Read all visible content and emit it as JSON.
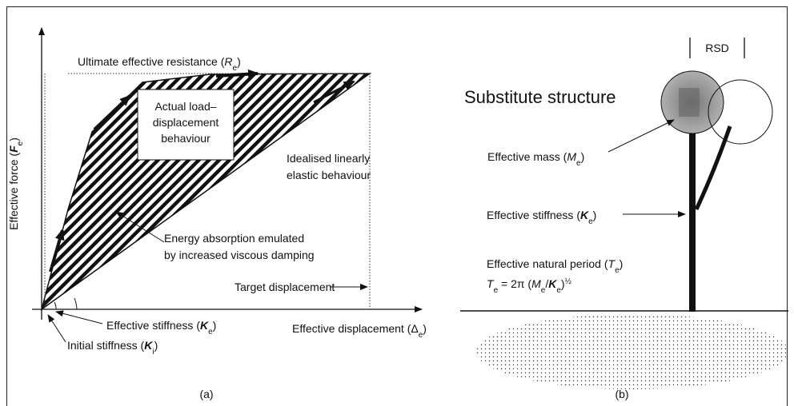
{
  "panel_a": {
    "y_axis_label": [
      {
        "t": "Effective force ("
      },
      {
        "t": "F",
        "bi": true
      },
      {
        "t": "e",
        "sub": true
      },
      {
        "t": ")"
      }
    ],
    "ultimate_resistance": [
      {
        "t": "Ultimate effective resistance ("
      },
      {
        "t": "R",
        "i": true
      },
      {
        "t": "e",
        "sub": true
      },
      {
        "t": ")"
      }
    ],
    "actual_behaviour": [
      "Actual load–",
      "displacement",
      "behaviour"
    ],
    "idealised_behaviour": [
      "Idealised linearly",
      "elastic behaviour"
    ],
    "energy_absorption": [
      "Energy absorption emulated",
      "by increased viscous damping"
    ],
    "target_displacement": "Target displacement",
    "effective_stiffness": [
      {
        "t": "Effective stiffness ("
      },
      {
        "t": "K",
        "bi": true
      },
      {
        "t": "e",
        "sub": true
      },
      {
        "t": ")"
      }
    ],
    "initial_stiffness": [
      {
        "t": "Initial stiffness ("
      },
      {
        "t": "K",
        "bi": true
      },
      {
        "t": "i",
        "sub": true
      },
      {
        "t": ")"
      }
    ],
    "x_axis_label": [
      {
        "t": "Effective displacement ("
      },
      {
        "t": "Δ"
      },
      {
        "t": "e",
        "sub": true
      },
      {
        "t": ")"
      }
    ],
    "caption": "(a)"
  },
  "panel_b": {
    "title": "Substitute structure",
    "rsd": "RSD",
    "effective_mass": [
      {
        "t": "Effective mass ("
      },
      {
        "t": "M",
        "i": true
      },
      {
        "t": "e",
        "sub": true
      },
      {
        "t": ")"
      }
    ],
    "effective_stiffness": [
      {
        "t": "Effective stiffness ("
      },
      {
        "t": "K",
        "bi": true
      },
      {
        "t": "e",
        "sub": true
      },
      {
        "t": ")"
      }
    ],
    "natural_period": [
      {
        "t": "Effective natural period ("
      },
      {
        "t": "T",
        "i": true
      },
      {
        "t": "e",
        "sub": true
      },
      {
        "t": ")"
      }
    ],
    "formula": [
      {
        "t": "T",
        "i": true
      },
      {
        "t": "e",
        "sub": true
      },
      {
        "t": " = 2π ("
      },
      {
        "t": "M",
        "i": true
      },
      {
        "t": "e",
        "sub": true
      },
      {
        "t": "/"
      },
      {
        "t": "K",
        "bi": true
      },
      {
        "t": "e",
        "sub": true
      },
      {
        "t": ")"
      },
      {
        "t": "½",
        "sup": true
      }
    ],
    "caption": "(b)"
  }
}
